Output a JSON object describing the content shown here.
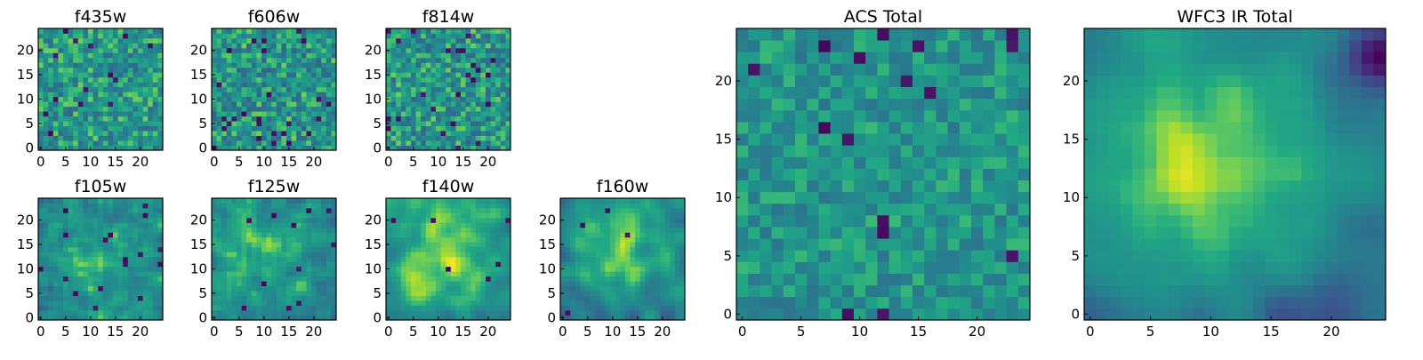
{
  "colormap": "viridis",
  "colors": {
    "low": "#440154",
    "mid": "#21918c",
    "high": "#fde725"
  },
  "chart_data": [
    {
      "type": "heatmap",
      "id": "f435w",
      "title": "f435w",
      "grid": [
        25,
        25
      ],
      "xticks": [
        0,
        5,
        10,
        15,
        20
      ],
      "yticks": [
        0,
        5,
        10,
        15,
        20
      ],
      "xlim": [
        0,
        24
      ],
      "ylim": [
        0,
        24
      ],
      "seed": 11,
      "smooth": 0,
      "bias": 0.65,
      "spread": 0.22,
      "darkRate": 0.035
    },
    {
      "type": "heatmap",
      "id": "f606w",
      "title": "f606w",
      "grid": [
        25,
        25
      ],
      "xticks": [
        0,
        5,
        10,
        15,
        20
      ],
      "yticks": [
        0,
        5,
        10,
        15,
        20
      ],
      "xlim": [
        0,
        24
      ],
      "ylim": [
        0,
        24
      ],
      "seed": 23,
      "smooth": 0,
      "bias": 0.64,
      "spread": 0.23,
      "darkRate": 0.035
    },
    {
      "type": "heatmap",
      "id": "f814w",
      "title": "f814w",
      "grid": [
        25,
        25
      ],
      "xticks": [
        0,
        5,
        10,
        15,
        20
      ],
      "yticks": [
        0,
        5,
        10,
        15,
        20
      ],
      "xlim": [
        0,
        24
      ],
      "ylim": [
        0,
        24
      ],
      "seed": 37,
      "smooth": 0,
      "bias": 0.64,
      "spread": 0.23,
      "darkRate": 0.04
    },
    {
      "type": "heatmap",
      "id": "f105w",
      "title": "f105w",
      "grid": [
        25,
        25
      ],
      "xticks": [
        0,
        5,
        10,
        15,
        20
      ],
      "yticks": [
        0,
        5,
        10,
        15,
        20
      ],
      "xlim": [
        0,
        24
      ],
      "ylim": [
        0,
        24
      ],
      "seed": 41,
      "smooth": 1,
      "bias": 0.6,
      "spread": 0.22,
      "darkRate": 0.02,
      "blob": {
        "x": 11,
        "y": 11,
        "r": 6,
        "amp": 0.2
      }
    },
    {
      "type": "heatmap",
      "id": "f125w",
      "title": "f125w",
      "grid": [
        25,
        25
      ],
      "xticks": [
        0,
        5,
        10,
        15,
        20
      ],
      "yticks": [
        0,
        5,
        10,
        15,
        20
      ],
      "xlim": [
        0,
        24
      ],
      "ylim": [
        0,
        24
      ],
      "seed": 53,
      "smooth": 1,
      "bias": 0.6,
      "spread": 0.22,
      "darkRate": 0.02,
      "blob": {
        "x": 10,
        "y": 16,
        "r": 6,
        "amp": 0.15
      }
    },
    {
      "type": "heatmap",
      "id": "f140w",
      "title": "f140w",
      "grid": [
        25,
        25
      ],
      "xticks": [
        0,
        5,
        10,
        15,
        20
      ],
      "yticks": [
        0,
        5,
        10,
        15,
        20
      ],
      "xlim": [
        0,
        24
      ],
      "ylim": [
        0,
        24
      ],
      "seed": 67,
      "smooth": 2,
      "bias": 0.58,
      "spread": 0.2,
      "darkRate": 0.012,
      "blob": {
        "x": 10,
        "y": 14,
        "r": 8,
        "amp": 0.3
      }
    },
    {
      "type": "heatmap",
      "id": "f160w",
      "title": "f160w",
      "grid": [
        25,
        25
      ],
      "xticks": [
        0,
        5,
        10,
        15,
        20
      ],
      "yticks": [
        0,
        5,
        10,
        15,
        20
      ],
      "xlim": [
        0,
        24
      ],
      "ylim": [
        0,
        24
      ],
      "seed": 79,
      "smooth": 2,
      "bias": 0.5,
      "spread": 0.2,
      "darkRate": 0.012,
      "blob": {
        "x": 11,
        "y": 14,
        "r": 7,
        "amp": 0.38
      }
    },
    {
      "type": "heatmap",
      "id": "acs_total",
      "title": "ACS Total",
      "grid": [
        25,
        25
      ],
      "xticks": [
        0,
        5,
        10,
        15,
        20
      ],
      "yticks": [
        0,
        5,
        10,
        15,
        20
      ],
      "xlim": [
        0,
        24
      ],
      "ylim": [
        0,
        24
      ],
      "seed": 97,
      "smooth": 0,
      "bias": 0.64,
      "spread": 0.16,
      "darkRate": 0.03
    },
    {
      "type": "heatmap",
      "id": "wfc3_ir_total",
      "title": "WFC3 IR Total",
      "grid": [
        25,
        25
      ],
      "xticks": [
        0,
        5,
        10,
        15,
        20
      ],
      "yticks": [
        0,
        5,
        10,
        15,
        20
      ],
      "xlim": [
        0,
        24
      ],
      "ylim": [
        0,
        24
      ],
      "seed": 131,
      "smooth": 2,
      "bias": 0.45,
      "spread": 0.14,
      "darkRate": 0.0,
      "blob": {
        "x": 10,
        "y": 13,
        "r": 8,
        "amp": 0.45
      },
      "darkCorner": true
    }
  ]
}
